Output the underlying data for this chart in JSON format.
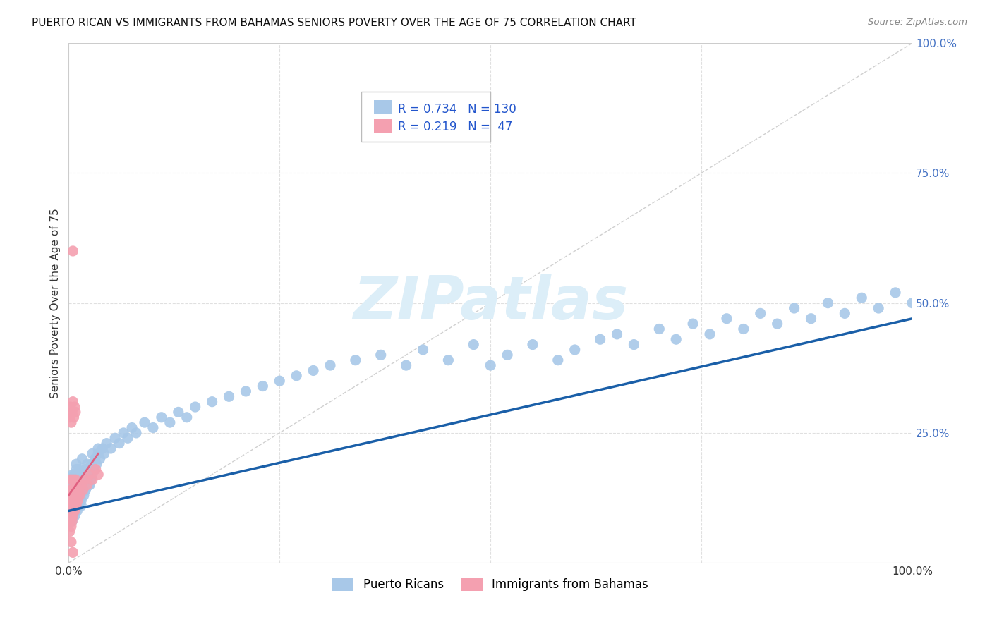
{
  "title": "PUERTO RICAN VS IMMIGRANTS FROM BAHAMAS SENIORS POVERTY OVER THE AGE OF 75 CORRELATION CHART",
  "source": "Source: ZipAtlas.com",
  "ylabel": "Seniors Poverty Over the Age of 75",
  "xlim": [
    0,
    1.0
  ],
  "ylim": [
    0,
    1.0
  ],
  "legend_R1": "0.734",
  "legend_N1": "130",
  "legend_R2": "0.219",
  "legend_N2": "47",
  "blue_color": "#a8c8e8",
  "pink_color": "#f4a0b0",
  "blue_line_color": "#1a5fa8",
  "pink_line_color": "#e06080",
  "grid_color": "#e0e0e0",
  "right_tick_color": "#4472c4",
  "watermark_color": "#dceef8",
  "pr_x": [
    0.002,
    0.003,
    0.003,
    0.004,
    0.004,
    0.005,
    0.005,
    0.005,
    0.006,
    0.006,
    0.006,
    0.007,
    0.007,
    0.007,
    0.007,
    0.008,
    0.008,
    0.008,
    0.009,
    0.009,
    0.009,
    0.01,
    0.01,
    0.01,
    0.011,
    0.011,
    0.012,
    0.012,
    0.013,
    0.013,
    0.014,
    0.014,
    0.015,
    0.015,
    0.016,
    0.017,
    0.018,
    0.019,
    0.02,
    0.02,
    0.021,
    0.022,
    0.023,
    0.024,
    0.025,
    0.026,
    0.027,
    0.028,
    0.03,
    0.031,
    0.033,
    0.035,
    0.037,
    0.04,
    0.042,
    0.045,
    0.05,
    0.055,
    0.06,
    0.065,
    0.07,
    0.075,
    0.08,
    0.09,
    0.1,
    0.11,
    0.12,
    0.13,
    0.14,
    0.15,
    0.17,
    0.19,
    0.21,
    0.23,
    0.25,
    0.27,
    0.29,
    0.31,
    0.34,
    0.37,
    0.4,
    0.42,
    0.45,
    0.48,
    0.5,
    0.52,
    0.55,
    0.58,
    0.6,
    0.63,
    0.65,
    0.67,
    0.7,
    0.72,
    0.74,
    0.76,
    0.78,
    0.8,
    0.82,
    0.84,
    0.86,
    0.88,
    0.9,
    0.92,
    0.94,
    0.96,
    0.98,
    1.0,
    0.004,
    0.005,
    0.006,
    0.007,
    0.008,
    0.009,
    0.01,
    0.012,
    0.015,
    0.018,
    0.02,
    0.025,
    0.005,
    0.007,
    0.009,
    0.011,
    0.013,
    0.016,
    0.019,
    0.022,
    0.028,
    0.035
  ],
  "pr_y": [
    0.12,
    0.1,
    0.14,
    0.11,
    0.13,
    0.09,
    0.12,
    0.15,
    0.1,
    0.13,
    0.16,
    0.11,
    0.14,
    0.12,
    0.17,
    0.1,
    0.13,
    0.16,
    0.12,
    0.15,
    0.18,
    0.11,
    0.14,
    0.17,
    0.13,
    0.16,
    0.12,
    0.15,
    0.14,
    0.17,
    0.13,
    0.16,
    0.12,
    0.15,
    0.14,
    0.16,
    0.15,
    0.17,
    0.14,
    0.18,
    0.15,
    0.16,
    0.17,
    0.15,
    0.18,
    0.16,
    0.19,
    0.17,
    0.18,
    0.2,
    0.19,
    0.21,
    0.2,
    0.22,
    0.21,
    0.23,
    0.22,
    0.24,
    0.23,
    0.25,
    0.24,
    0.26,
    0.25,
    0.27,
    0.26,
    0.28,
    0.27,
    0.29,
    0.28,
    0.3,
    0.31,
    0.32,
    0.33,
    0.34,
    0.35,
    0.36,
    0.37,
    0.38,
    0.39,
    0.4,
    0.38,
    0.41,
    0.39,
    0.42,
    0.38,
    0.4,
    0.42,
    0.39,
    0.41,
    0.43,
    0.44,
    0.42,
    0.45,
    0.43,
    0.46,
    0.44,
    0.47,
    0.45,
    0.48,
    0.46,
    0.49,
    0.47,
    0.5,
    0.48,
    0.51,
    0.49,
    0.52,
    0.5,
    0.08,
    0.1,
    0.12,
    0.09,
    0.11,
    0.13,
    0.1,
    0.12,
    0.11,
    0.13,
    0.14,
    0.15,
    0.17,
    0.15,
    0.19,
    0.16,
    0.18,
    0.2,
    0.17,
    0.19,
    0.21,
    0.22
  ],
  "bah_x": [
    0.001,
    0.001,
    0.001,
    0.002,
    0.002,
    0.002,
    0.002,
    0.003,
    0.003,
    0.003,
    0.003,
    0.004,
    0.004,
    0.004,
    0.005,
    0.005,
    0.005,
    0.006,
    0.006,
    0.007,
    0.007,
    0.008,
    0.008,
    0.009,
    0.009,
    0.01,
    0.011,
    0.012,
    0.013,
    0.015,
    0.017,
    0.019,
    0.022,
    0.025,
    0.028,
    0.032,
    0.035,
    0.001,
    0.002,
    0.003,
    0.004,
    0.005,
    0.006,
    0.007,
    0.008,
    0.003,
    0.005
  ],
  "bah_y": [
    0.08,
    0.12,
    0.06,
    0.1,
    0.14,
    0.08,
    0.16,
    0.09,
    0.13,
    0.07,
    0.11,
    0.1,
    0.14,
    0.08,
    0.12,
    0.16,
    0.09,
    0.11,
    0.13,
    0.1,
    0.14,
    0.12,
    0.16,
    0.11,
    0.15,
    0.13,
    0.12,
    0.14,
    0.13,
    0.15,
    0.14,
    0.16,
    0.15,
    0.17,
    0.16,
    0.18,
    0.17,
    0.28,
    0.3,
    0.27,
    0.29,
    0.31,
    0.28,
    0.3,
    0.29,
    0.04,
    0.02
  ],
  "bah_outlier_x": [
    0.005
  ],
  "bah_outlier_y": [
    0.6
  ],
  "blue_line_x0": 0.0,
  "blue_line_y0": 0.1,
  "blue_line_x1": 1.0,
  "blue_line_y1": 0.47,
  "pink_line_x0": 0.0,
  "pink_line_y0": 0.13,
  "pink_line_x1": 0.035,
  "pink_line_y1": 0.21
}
